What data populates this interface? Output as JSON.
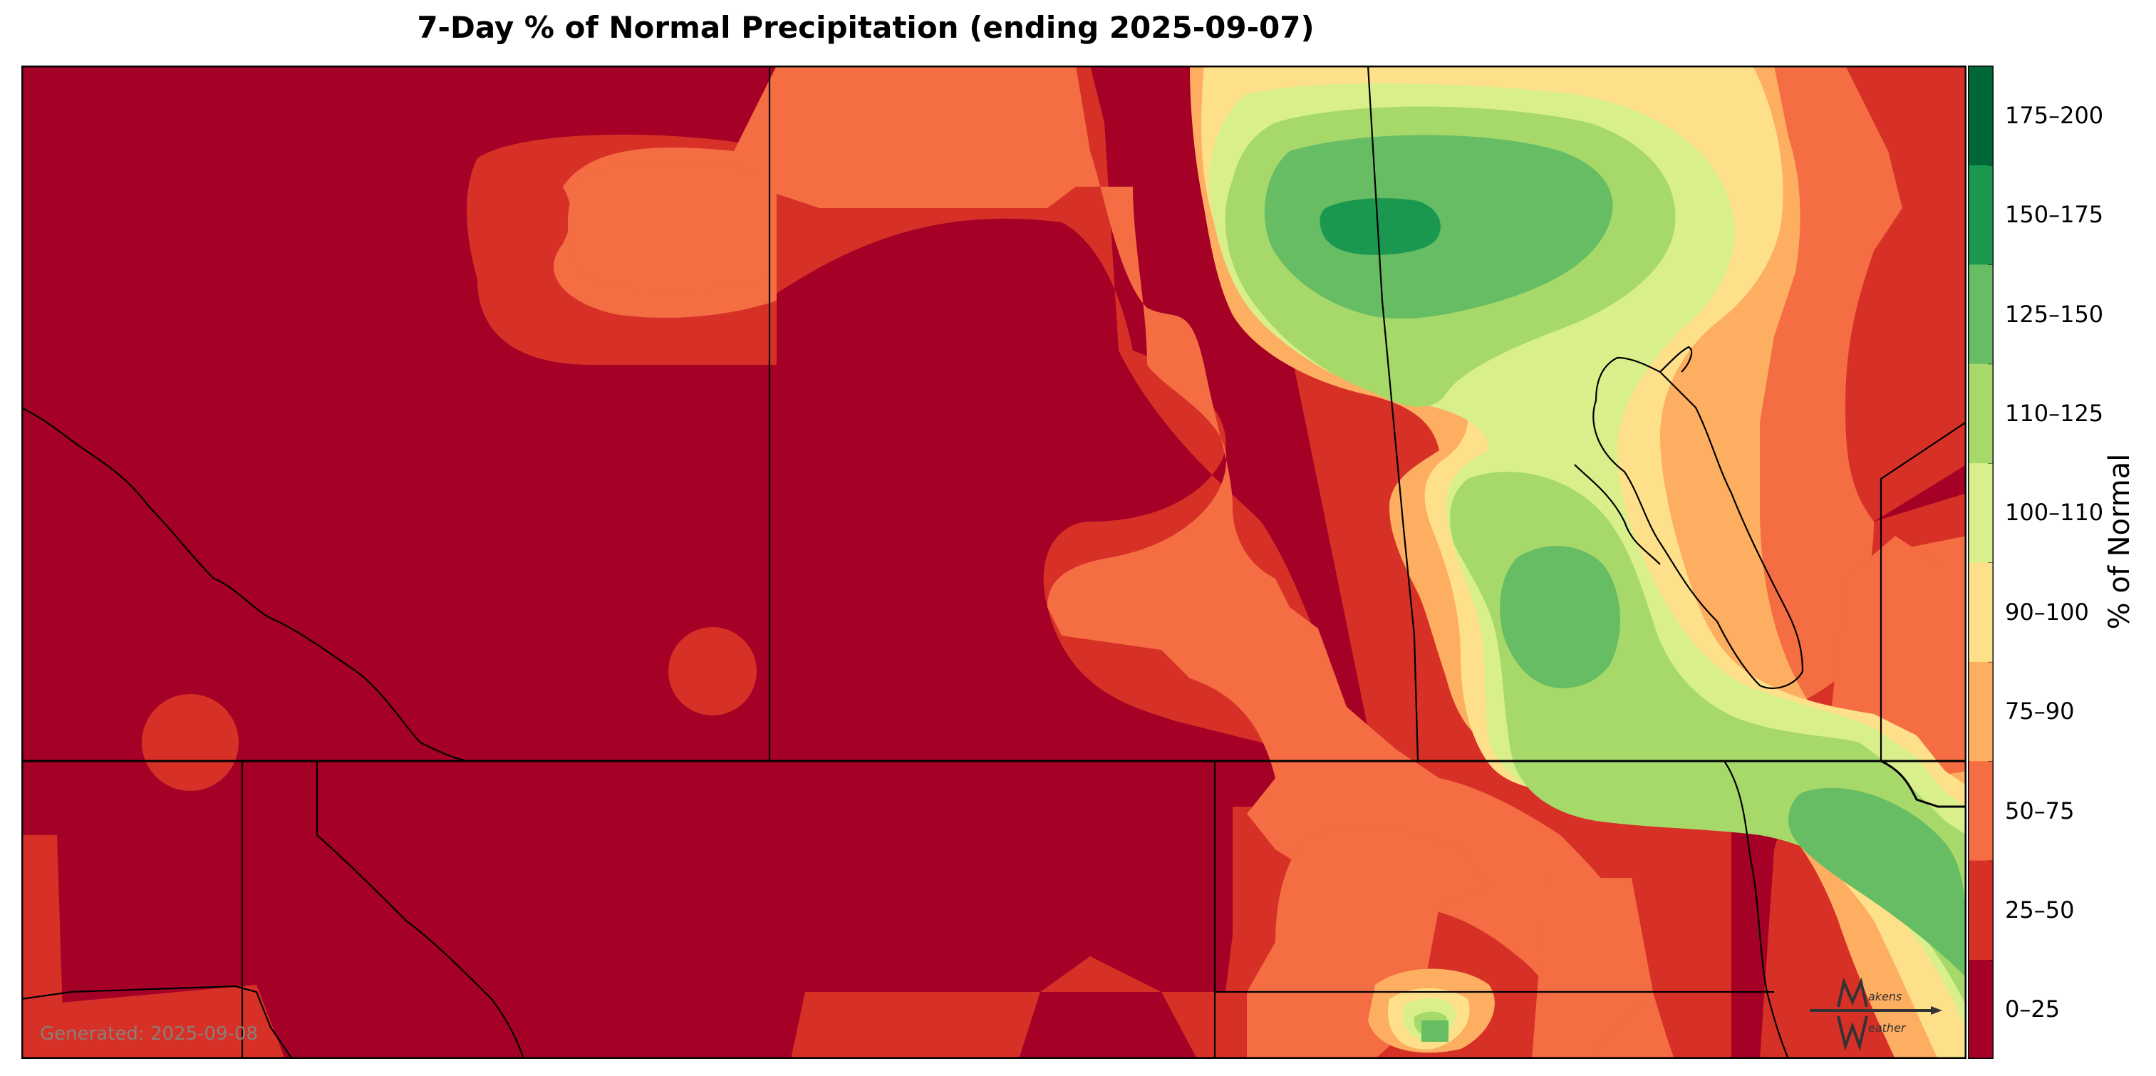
{
  "title": "7-Day % of Normal Precipitation (ending 2025-09-07)",
  "footer": {
    "generated": "Generated: 2025-09-08"
  },
  "colorbar": {
    "label": "% of Normal",
    "bins": [
      {
        "label": "0–25",
        "color": "#a50026"
      },
      {
        "label": "25–50",
        "color": "#d73027"
      },
      {
        "label": "50–75",
        "color": "#f46d43"
      },
      {
        "label": "75–90",
        "color": "#fdae61"
      },
      {
        "label": "90–100",
        "color": "#fee08b"
      },
      {
        "label": "100–110",
        "color": "#d9ef8b"
      },
      {
        "label": "110–125",
        "color": "#a6d96a"
      },
      {
        "label": "125–150",
        "color": "#66bd63"
      },
      {
        "label": "150–175",
        "color": "#1a9850"
      },
      {
        "label": "175–200",
        "color": "#006837"
      }
    ]
  },
  "logo": {
    "text_top": "akens",
    "text_bottom": "eather"
  }
}
